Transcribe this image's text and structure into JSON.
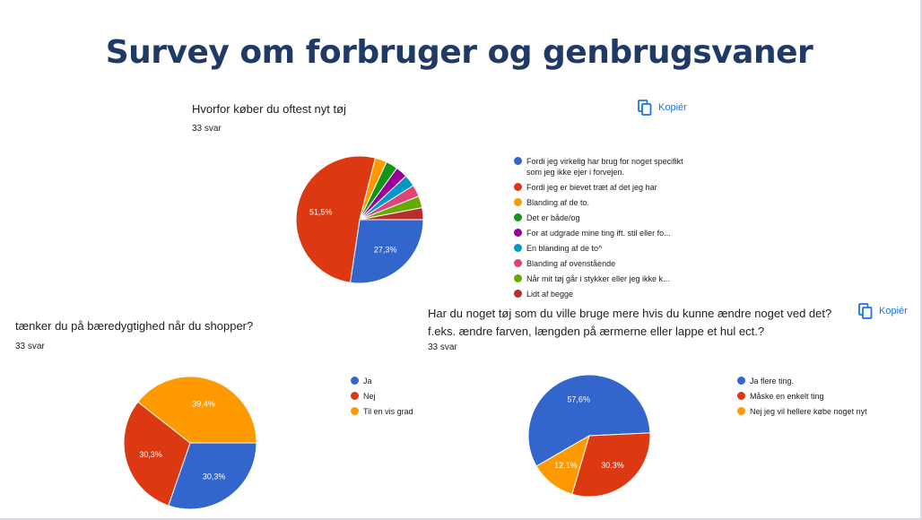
{
  "title": "Survey om forbruger og genbrugsvaner",
  "copy_label": "Kopiér",
  "chart_data": [
    {
      "type": "pie",
      "title": "Hvorfor køber du oftest nyt tøj",
      "responses": "33 svar",
      "categories": [
        "Fordi jeg virkelig har brug for noget specifikt som jeg ikke ejer i forvejen.",
        "Fordi jeg er bievet træt af det jeg har",
        "Blanding af de to.",
        "Det er både/og",
        "For at udgrade mine ting ift. stil eller fo...",
        "En blanding af de to^",
        "Blanding af ovenstående",
        "Når mit tøj går i stykker eller jeg ikke k...",
        "Lidt af begge"
      ],
      "values": [
        27.3,
        51.5,
        3.0,
        3.0,
        3.0,
        3.0,
        3.0,
        3.0,
        3.0
      ],
      "labels": [
        "27,3%",
        "51,5%",
        "",
        "",
        "",
        "",
        "",
        "",
        ""
      ],
      "colors": [
        "#3366cc",
        "#dc3912",
        "#ff9900",
        "#109618",
        "#990099",
        "#0099c6",
        "#dd4477",
        "#66aa00",
        "#b82e2e"
      ]
    },
    {
      "type": "pie",
      "title": "tænker du på bæredygtighed når du shopper?",
      "responses": "33 svar",
      "categories": [
        "Ja",
        "Nej",
        "Til en vis grad"
      ],
      "values": [
        30.3,
        30.3,
        39.4
      ],
      "labels": [
        "30,3%",
        "30,3%",
        "39,4%"
      ],
      "colors": [
        "#3366cc",
        "#dc3912",
        "#ff9900"
      ]
    },
    {
      "type": "pie",
      "title": "Har du noget tøj som du ville bruge mere hvis du kunne ændre noget ved det? f.eks. ændre farven, længden på ærmerne eller lappe et hul ect.?",
      "responses": "33 svar",
      "categories": [
        "Ja flere ting.",
        "Måske en enkelt ting",
        "Nej jeg vil hellere købe noget nyt"
      ],
      "values": [
        57.6,
        30.3,
        12.1
      ],
      "labels": [
        "57,6%",
        "30,3%",
        "12,1%"
      ],
      "colors": [
        "#3366cc",
        "#dc3912",
        "#ff9900"
      ]
    }
  ]
}
